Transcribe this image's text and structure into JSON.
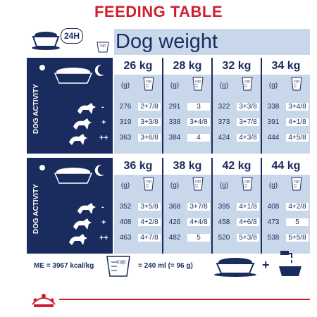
{
  "title": "FEEDING TABLE",
  "label_24h": "24H",
  "header": "Dog weight",
  "activity_label": "DOG ACTIVITY",
  "levels": [
    "-",
    "+",
    "++"
  ],
  "fractions": [
    "½",
    "½"
  ],
  "units": {
    "grams": "(g)",
    "cup": "cup"
  },
  "sections": [
    {
      "weights": [
        "26 kg",
        "28 kg",
        "32 kg",
        "34 kg"
      ],
      "rows": [
        [
          [
            "276",
            "2+7/8"
          ],
          [
            "291",
            "3"
          ],
          [
            "322",
            "3+3/8"
          ],
          [
            "338",
            "3+4/8"
          ]
        ],
        [
          [
            "319",
            "3+3/8"
          ],
          [
            "338",
            "3+4/8"
          ],
          [
            "373",
            "3+7/8"
          ],
          [
            "391",
            "4+1/8"
          ]
        ],
        [
          [
            "363",
            "3+6/8"
          ],
          [
            "384",
            "4"
          ],
          [
            "424",
            "4+3/8"
          ],
          [
            "444",
            "4+5/8"
          ]
        ]
      ]
    },
    {
      "weights": [
        "36 kg",
        "38 kg",
        "42 kg",
        "44 kg"
      ],
      "rows": [
        [
          [
            "352",
            "3+5/8"
          ],
          [
            "368",
            "3+7/8"
          ],
          [
            "395",
            "4+1/8"
          ],
          [
            "408",
            "4+2/8"
          ]
        ],
        [
          [
            "408",
            "4+2/8"
          ],
          [
            "426",
            "4+4/8"
          ],
          [
            "458",
            "4+6/8"
          ],
          [
            "473",
            "5"
          ]
        ],
        [
          [
            "463",
            "4+7/8"
          ],
          [
            "482",
            "5"
          ],
          [
            "520",
            "5+3/8"
          ],
          [
            "538",
            "5+5/8"
          ]
        ]
      ]
    }
  ],
  "footer": {
    "me": "ME = 3967 kcal/kg",
    "cup_label": "cup",
    "cup_equiv": "= 240 ml (= 96 g)",
    "plus": "+"
  },
  "colors": {
    "navy": "#1a2b5e",
    "light_blue": "#c9d7ea",
    "red": "#d01f2f"
  }
}
